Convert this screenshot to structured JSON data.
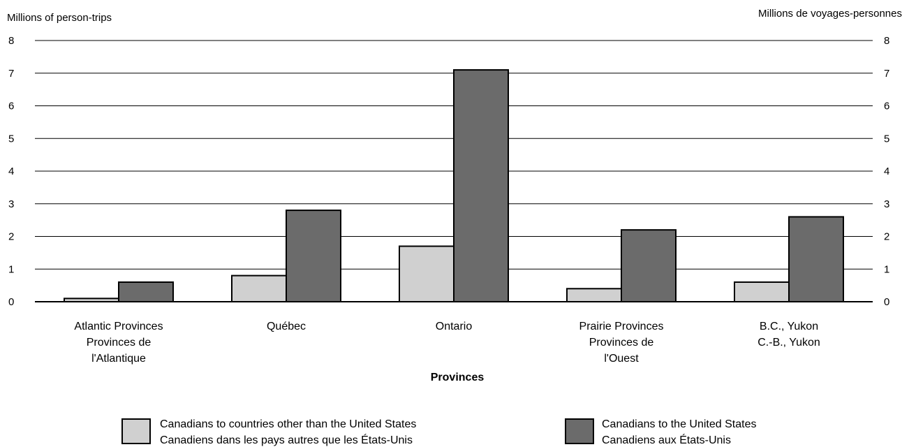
{
  "chart_data": {
    "type": "bar",
    "ylabel_left": "Millions of person-trips",
    "ylabel_right": "Millions de voyages-personnes",
    "xlabel": "Provinces",
    "ylim": [
      0,
      8
    ],
    "yticks": [
      "0",
      "1",
      "2",
      "3",
      "4",
      "5",
      "6",
      "7",
      "8"
    ],
    "grid": true,
    "legend_position": "bottom",
    "categories": [
      [
        "Atlantic Provinces",
        "Provinces de",
        "l'Atlantique"
      ],
      [
        "Québec"
      ],
      [
        "Ontario"
      ],
      [
        "Prairie Provinces",
        "Provinces de",
        "l'Ouest"
      ],
      [
        "B.C.,  Yukon",
        "C.-B., Yukon"
      ]
    ],
    "series": [
      {
        "name": "Canadians to countries other than the United States",
        "name_fr": "Canadiens dans les pays autres que les États-Unis",
        "color": "#d0d0d0",
        "values": [
          0.1,
          0.8,
          1.7,
          0.4,
          0.6
        ]
      },
      {
        "name": "Canadians to the United States",
        "name_fr": "Canadiens aux États-Unis",
        "color": "#6b6b6b",
        "values": [
          0.6,
          2.8,
          7.1,
          2.2,
          2.6
        ]
      }
    ]
  }
}
